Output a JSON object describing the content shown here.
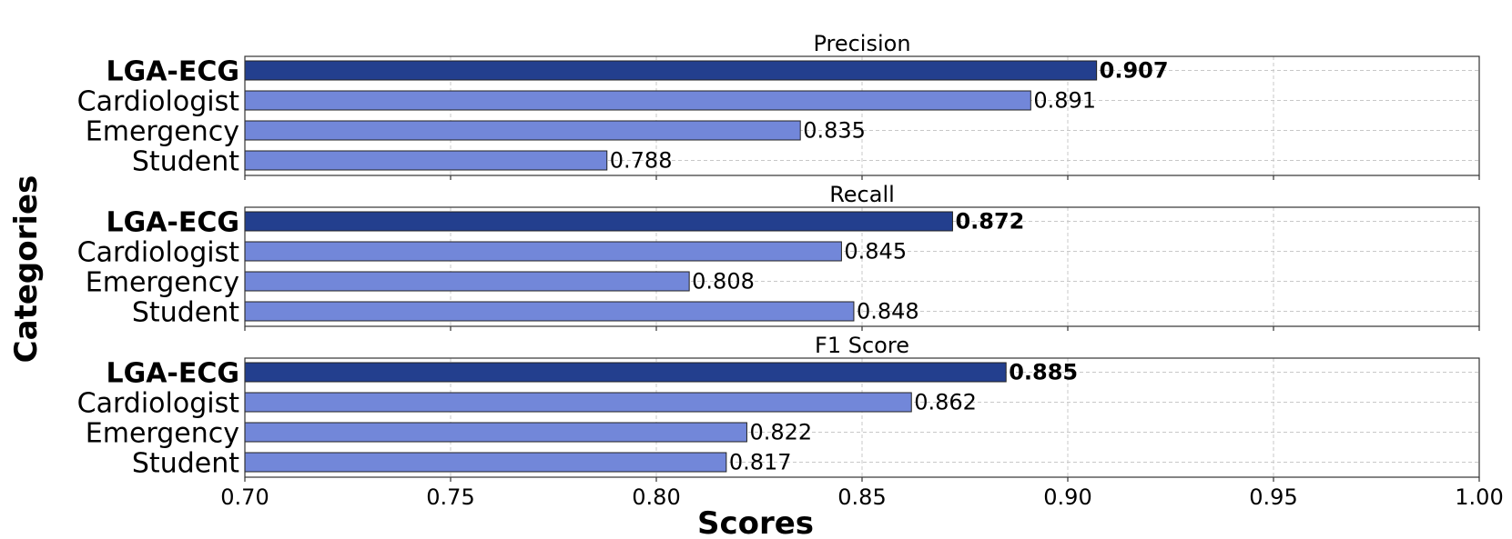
{
  "chart_data": {
    "type": "bar",
    "orientation": "horizontal",
    "xlabel": "Scores",
    "ylabel": "Categories",
    "xlim": [
      0.7,
      1.0
    ],
    "xticks": [
      "0.70",
      "0.75",
      "0.80",
      "0.85",
      "0.90",
      "0.95",
      "1.00"
    ],
    "grid": true,
    "highlight_category": "LGA-ECG",
    "colors": {
      "highlight": "#233f8e",
      "other": "#7287d9",
      "edge": "#222222"
    },
    "categories": [
      "LGA-ECG",
      "Cardiologist",
      "Emergency",
      "Student"
    ],
    "panels": [
      {
        "title": "Precision",
        "values": [
          0.907,
          0.891,
          0.835,
          0.788
        ],
        "labels": [
          "0.907",
          "0.891",
          "0.835",
          "0.788"
        ]
      },
      {
        "title": "Recall",
        "values": [
          0.872,
          0.845,
          0.808,
          0.848
        ],
        "labels": [
          "0.872",
          "0.845",
          "0.808",
          "0.848"
        ]
      },
      {
        "title": "F1 Score",
        "values": [
          0.885,
          0.862,
          0.822,
          0.817
        ],
        "labels": [
          "0.885",
          "0.862",
          "0.822",
          "0.817"
        ]
      }
    ]
  }
}
